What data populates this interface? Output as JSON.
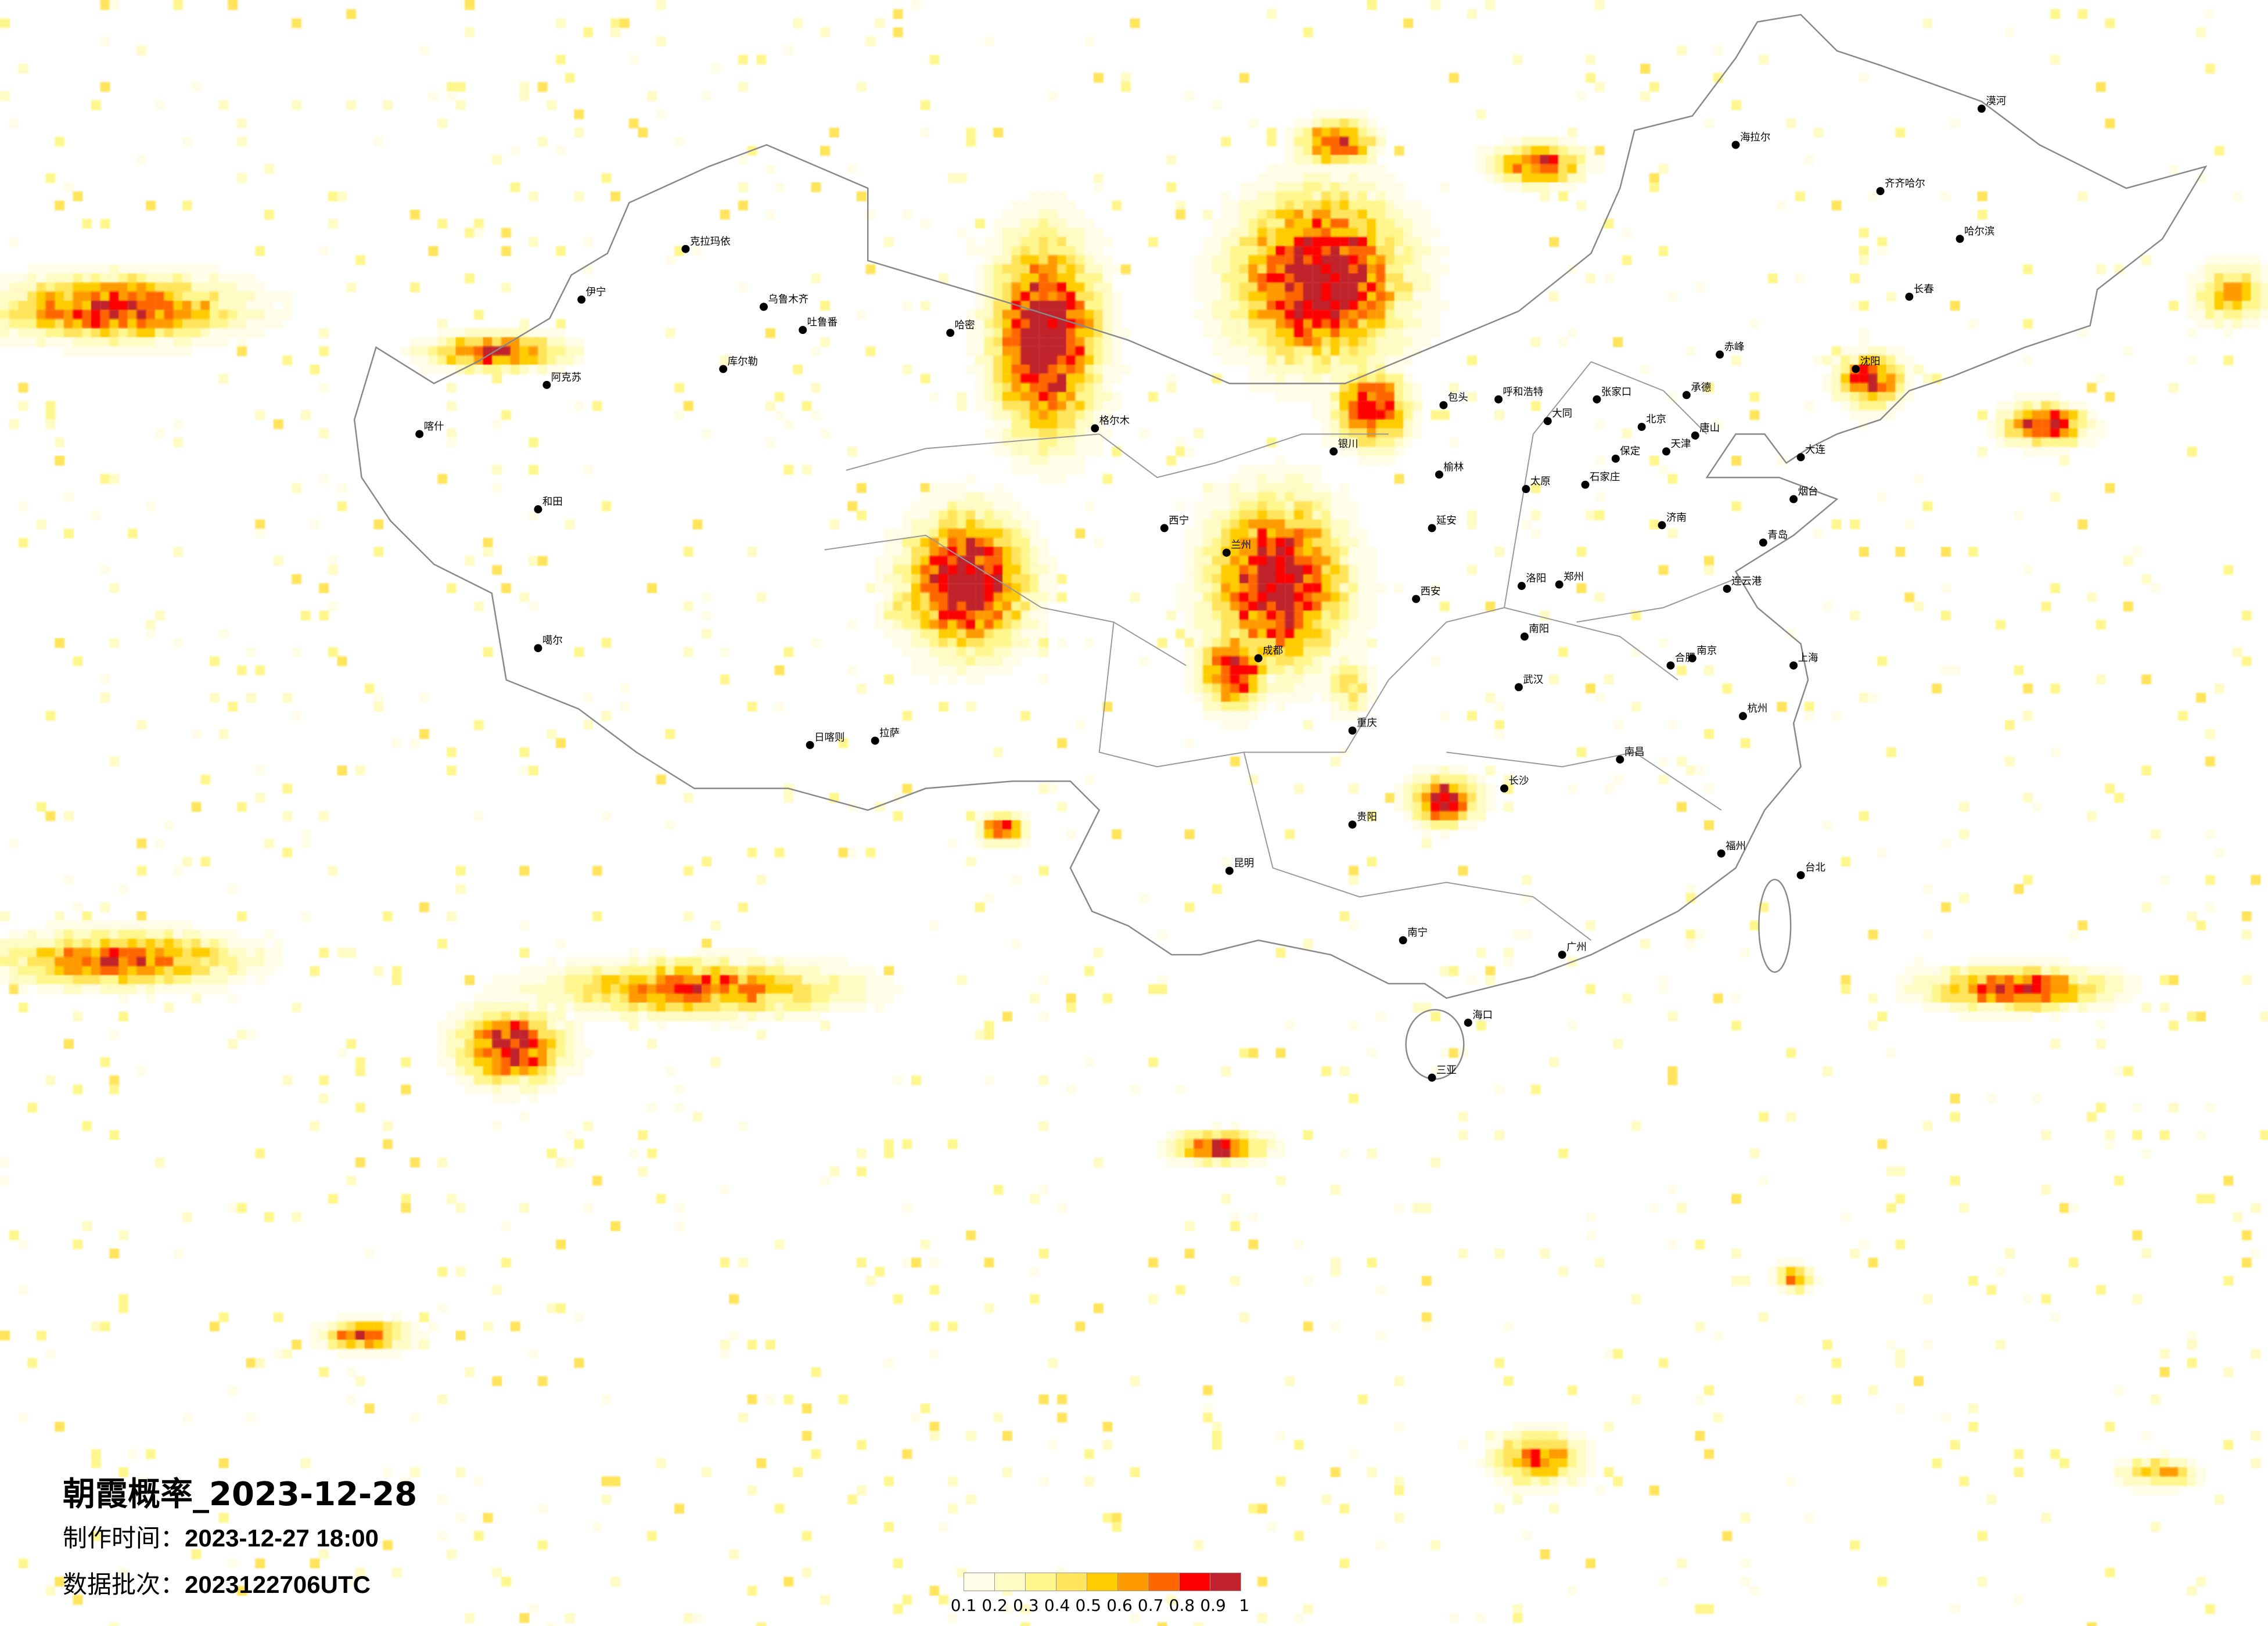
{
  "title": "朝霞概率_2023-12-28",
  "made_time_label": "制作时间：",
  "made_time_value": "2023-12-27 18:00",
  "batch_label": "数据批次：",
  "batch_value": "2023122706UTC",
  "legend": {
    "bins": [
      "#fffde8",
      "#fffbc4",
      "#fff78e",
      "#ffe45c",
      "#ffcc00",
      "#ff9a00",
      "#ff6600",
      "#ff0000",
      "#c0232b"
    ],
    "ticks": [
      "0.1",
      "0.2",
      "0.3",
      "0.4",
      "0.5",
      "0.6",
      "0.7",
      "0.8",
      "0.9",
      "1"
    ]
  },
  "colors": {
    "boundary": "#888888",
    "city_dot": "#000000"
  },
  "cities": [
    "乌鲁木齐",
    "克拉玛依",
    "伊宁",
    "阿克苏",
    "喀什",
    "和田",
    "哈密",
    "吐鲁番",
    "库尔勒",
    "格尔木",
    "噶尔",
    "拉萨",
    "日喀则",
    "西宁",
    "兰州",
    "银川",
    "包头",
    "呼和浩特",
    "张家口",
    "北京",
    "天津",
    "唐山",
    "承德",
    "赤峰",
    "石家庄",
    "保定",
    "太原",
    "大同",
    "济南",
    "青岛",
    "郑州",
    "洛阳",
    "西安",
    "延安",
    "榆林",
    "南阳",
    "沈阳",
    "大连",
    "烟台",
    "连云港",
    "合肥",
    "南京",
    "上海",
    "杭州",
    "武汉",
    "长沙",
    "南昌",
    "福州",
    "广州",
    "南宁",
    "海口",
    "三亚",
    "贵阳",
    "昆明",
    "成都",
    "重庆",
    "台北",
    "哈尔滨",
    "长春",
    "齐齐哈尔",
    "海拉尔",
    "漠河"
  ]
}
